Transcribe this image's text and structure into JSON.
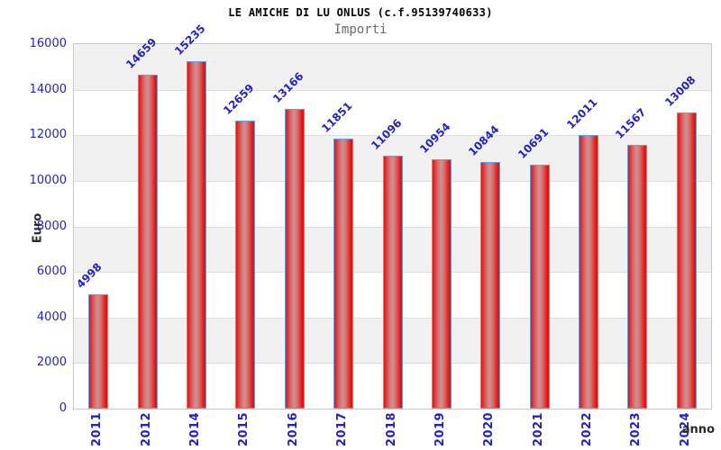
{
  "chart_data": {
    "type": "bar",
    "title": "LE AMICHE DI LU ONLUS (c.f.95139740633)",
    "subtitle": "Importi",
    "categories": [
      "2011",
      "2012",
      "2014",
      "2015",
      "2016",
      "2017",
      "2018",
      "2019",
      "2020",
      "2021",
      "2022",
      "2023",
      "2024"
    ],
    "values": [
      4998,
      14659,
      15235,
      12659,
      13166,
      11851,
      11096,
      10954,
      10844,
      10691,
      12011,
      11567,
      13008
    ],
    "xlabel": "anno",
    "ylabel": "Euro",
    "ylim": [
      0,
      16000
    ],
    "yticks": [
      0,
      2000,
      4000,
      6000,
      8000,
      10000,
      12000,
      14000,
      16000
    ],
    "grid": "alternating-horizontal-bands",
    "legend_position": "none",
    "bar_value_labels_shown": true,
    "value_label_rotation_deg": 45,
    "category_label_rotation_deg": 90
  },
  "colors": {
    "label_blue": "#2222cc",
    "bar_red": "#e81111",
    "bar_mid": "#d77070",
    "bar_highlight": "#cd9292",
    "bar_border": "#5fa0e8",
    "band_gray": "#f1f1f1",
    "band_white": "#ffffff",
    "grid_line": "#dddddd",
    "plot_border": "#c9c9c9",
    "axis_title_dark": "#2b2b2b",
    "title_color": "#000000",
    "subtitle_color": "#6a6a6a",
    "background": "#ffffff"
  }
}
